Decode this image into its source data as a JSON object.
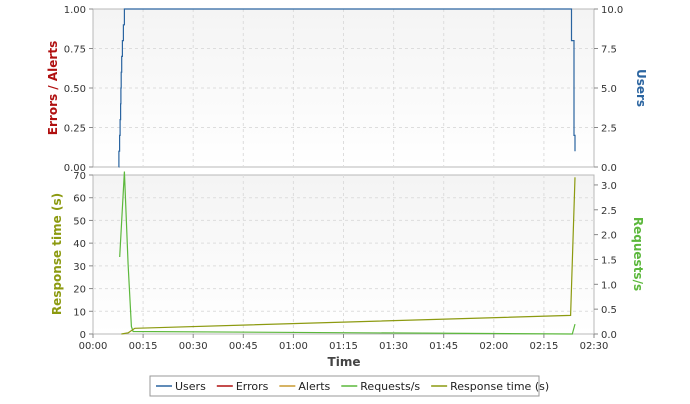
{
  "chart_data": [
    {
      "type": "line",
      "panel": "top",
      "ylabel_left": "Errors / Alerts",
      "ylabel_right": "Users",
      "ylim_left": [
        0,
        1.0
      ],
      "ylim_right": [
        0,
        10.0
      ],
      "yticks_left": [
        "0.00",
        "0.25",
        "0.50",
        "0.75",
        "1.00"
      ],
      "yticks_right": [
        "0.0",
        "2.5",
        "5.0",
        "7.5",
        "10.0"
      ],
      "grid": true,
      "series": [
        {
          "name": "Users",
          "color": "#2a64a0",
          "axis": "right",
          "step": true,
          "points": [
            [
              7.7,
              0
            ],
            [
              7.75,
              1
            ],
            [
              7.95,
              2
            ],
            [
              8.1,
              3
            ],
            [
              8.25,
              4
            ],
            [
              8.35,
              5
            ],
            [
              8.45,
              6
            ],
            [
              8.6,
              7
            ],
            [
              8.8,
              8
            ],
            [
              9.1,
              9
            ],
            [
              9.4,
              10
            ],
            [
              143.2,
              10
            ],
            [
              143.25,
              8
            ],
            [
              143.8,
              8
            ],
            [
              144.0,
              2
            ],
            [
              144.3,
              1
            ]
          ]
        },
        {
          "name": "Errors",
          "color": "#b01010",
          "axis": "left",
          "points": []
        },
        {
          "name": "Alerts",
          "color": "#c89a30",
          "axis": "left",
          "points": []
        }
      ]
    },
    {
      "type": "line",
      "panel": "bottom",
      "xlabel": "Time",
      "ylabel_left": "Response time (s)",
      "ylabel_right": "Requests/s",
      "xlim": [
        0,
        150
      ],
      "ylim_left": [
        0,
        70
      ],
      "ylim_right": [
        0,
        3.2
      ],
      "xticks": [
        [
          "00:00",
          0
        ],
        [
          "00:15",
          15
        ],
        [
          "00:30",
          30
        ],
        [
          "00:45",
          45
        ],
        [
          "01:00",
          60
        ],
        [
          "01:15",
          75
        ],
        [
          "01:30",
          90
        ],
        [
          "01:45",
          105
        ],
        [
          "02:00",
          120
        ],
        [
          "02:15",
          135
        ],
        [
          "02:30",
          150
        ]
      ],
      "yticks_left": [
        "0",
        "10",
        "20",
        "30",
        "40",
        "50",
        "60",
        "70"
      ],
      "yticks_right": [
        "0.0",
        "0.5",
        "1.0",
        "1.5",
        "2.0",
        "2.5",
        "3.0"
      ],
      "grid": true,
      "series": [
        {
          "name": "Requests/s",
          "color": "#5cb83c",
          "axis": "right",
          "points": [
            [
              8.0,
              1.55
            ],
            [
              9.4,
              3.27
            ],
            [
              10.5,
              1.4
            ],
            [
              11.5,
              0.15
            ],
            [
              12.0,
              0.05
            ],
            [
              143.5,
              0.0
            ],
            [
              144.3,
              0.2
            ]
          ]
        },
        {
          "name": "Response time (s)",
          "color": "#8c9a10",
          "axis": "left",
          "points": [
            [
              8.5,
              0
            ],
            [
              10.5,
              0.5
            ],
            [
              12.5,
              2.5
            ],
            [
              143.0,
              8.2
            ],
            [
              144.3,
              69
            ]
          ]
        }
      ]
    }
  ],
  "legend": {
    "items": [
      {
        "label": "Users",
        "color": "#2a64a0"
      },
      {
        "label": "Errors",
        "color": "#b01010"
      },
      {
        "label": "Alerts",
        "color": "#c89a30"
      },
      {
        "label": "Requests/s",
        "color": "#5cb83c"
      },
      {
        "label": "Response time (s)",
        "color": "#8c9a10"
      }
    ]
  }
}
